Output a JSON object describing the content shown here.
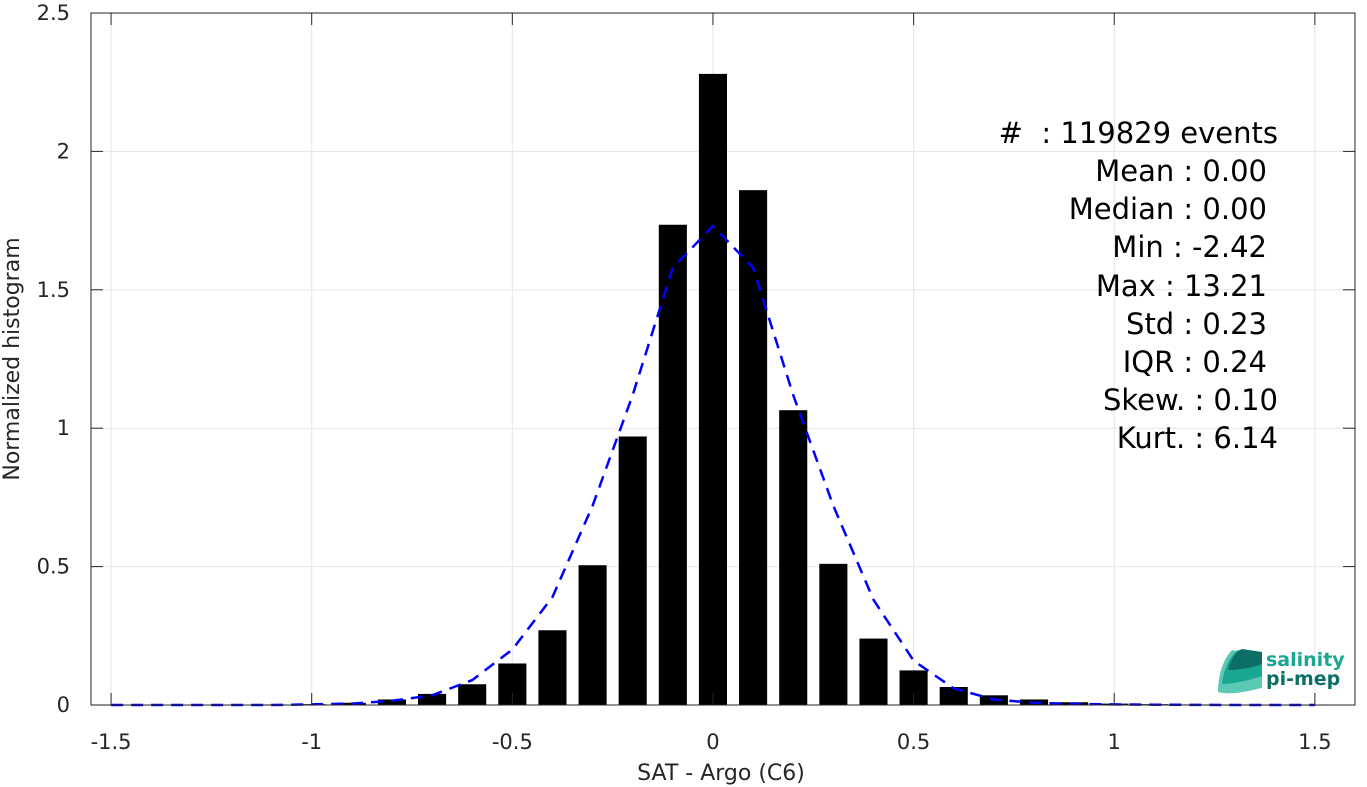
{
  "chart_data": {
    "type": "bar",
    "xlabel": "SAT - Argo (C6)",
    "ylabel": "Normalized histogram",
    "xlim": [
      -1.55,
      1.6
    ],
    "ylim": [
      0,
      2.5
    ],
    "xticks": [
      -1.5,
      -1,
      -0.5,
      0,
      0.5,
      1,
      1.5
    ],
    "xtick_labels": [
      "-1.5",
      "-1",
      "-0.5",
      "0",
      "0.5",
      "1",
      "1.5"
    ],
    "yticks": [
      0,
      0.5,
      1,
      1.5,
      2,
      2.5
    ],
    "ytick_labels": [
      "0",
      "0.5",
      "1",
      "1.5",
      "2",
      "2.5"
    ],
    "grid": true,
    "bar_width": 0.07,
    "series": [
      {
        "x": [
          -1.5,
          -1.4,
          -1.3,
          -1.2,
          -1.1,
          -1.0,
          -0.9,
          -0.8,
          -0.7,
          -0.6,
          -0.5,
          -0.4,
          -0.3,
          -0.2,
          -0.1,
          0.0,
          0.1,
          0.2,
          0.3,
          0.4,
          0.5,
          0.6,
          0.7,
          0.8,
          0.9,
          1.0,
          1.1,
          1.2,
          1.3,
          1.4,
          1.5
        ],
        "values": [
          0.001,
          0.001,
          0.001,
          0.001,
          0.002,
          0.003,
          0.008,
          0.02,
          0.04,
          0.075,
          0.15,
          0.27,
          0.505,
          0.97,
          1.735,
          2.28,
          1.86,
          1.065,
          0.51,
          0.24,
          0.125,
          0.065,
          0.035,
          0.02,
          0.01,
          0.005,
          0.003,
          0.002,
          0.001,
          0.001,
          0.001
        ],
        "color": "#000000"
      },
      {
        "type": "line",
        "style": "dashed",
        "color": "#0000ff",
        "x": [
          -1.5,
          -1.3,
          -1.1,
          -1.0,
          -0.9,
          -0.8,
          -0.7,
          -0.6,
          -0.5,
          -0.4,
          -0.3,
          -0.2,
          -0.1,
          0.0,
          0.1,
          0.2,
          0.3,
          0.4,
          0.5,
          0.6,
          0.7,
          0.8,
          0.9,
          1.0,
          1.1,
          1.3,
          1.5
        ],
        "values": [
          0.0,
          0.0,
          0.0,
          0.002,
          0.005,
          0.015,
          0.035,
          0.09,
          0.2,
          0.39,
          0.72,
          1.12,
          1.58,
          1.73,
          1.58,
          1.12,
          0.72,
          0.38,
          0.16,
          0.06,
          0.02,
          0.008,
          0.004,
          0.002,
          0.001,
          0.0,
          0.0
        ]
      }
    ]
  },
  "stats": [
    "#  : 119829 events",
    "Mean : 0.00",
    "Median : 0.00",
    "Min : -2.42",
    "Max : 13.21",
    "Std : 0.23",
    "IQR : 0.24",
    "Skew. : 0.10",
    "Kurt. : 6.14"
  ],
  "logo": {
    "line1": "salinity",
    "line2": "pi-mep"
  },
  "colors": {
    "bar": "#000000",
    "fit": "#0000ff",
    "grid": "#e6e6e6",
    "logo_teal": "#1aa791",
    "logo_dark": "#0c6e66"
  }
}
